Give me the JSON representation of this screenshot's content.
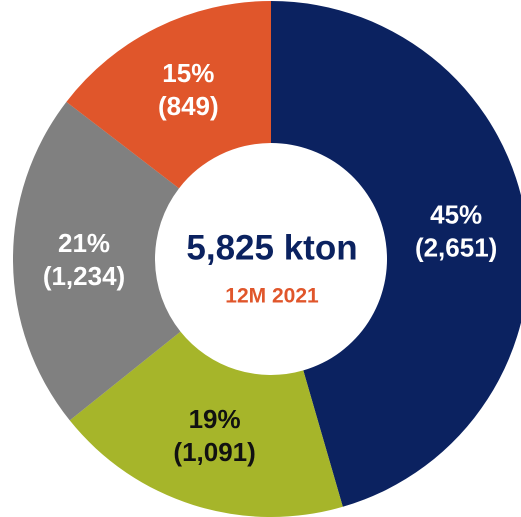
{
  "chart_data": {
    "type": "donut",
    "center_label": "5,825 kton",
    "subtitle": "12M 2021",
    "values": [
      2651,
      1091,
      1234,
      849
    ],
    "value_labels": [
      "(2,651)",
      "(1,091)",
      "(1,234)",
      "(849)"
    ],
    "percents": [
      45,
      19,
      21,
      15
    ],
    "percent_labels": [
      "45%",
      "19%",
      "21%",
      "15%"
    ],
    "colors": [
      "#0b2260",
      "#a6b52a",
      "#808080",
      "#e0562b"
    ],
    "label_colors": [
      "#ffffff",
      "#111111",
      "#ffffff",
      "#ffffff"
    ],
    "center_color": "#0b2260",
    "subtitle_color": "#e0562b"
  }
}
